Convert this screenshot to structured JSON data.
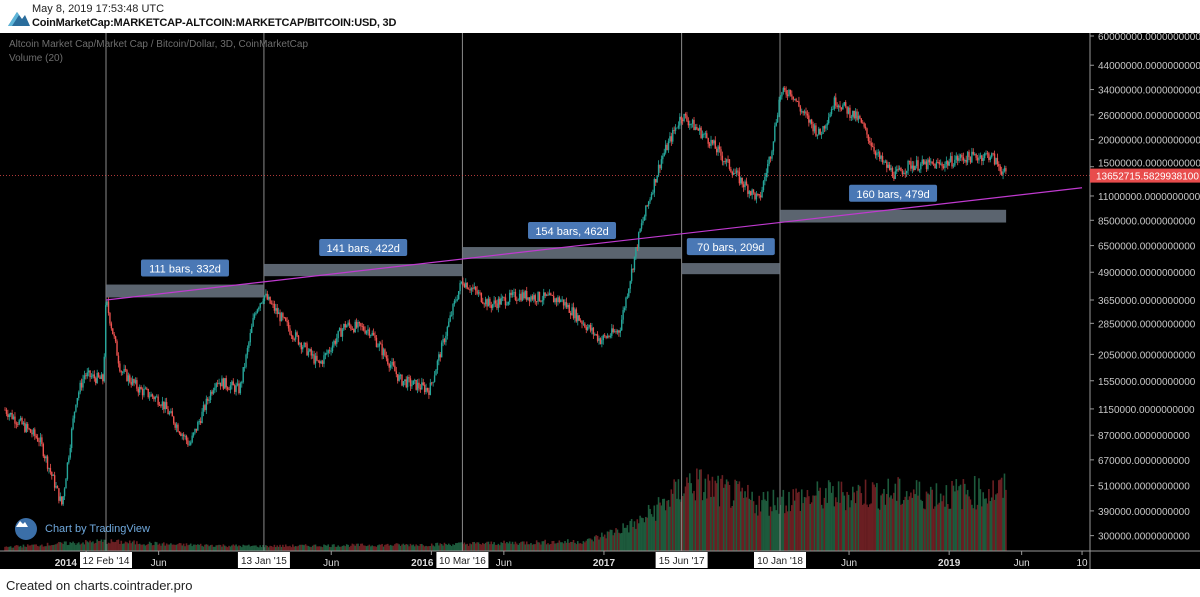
{
  "header": {
    "timestamp": "May 8, 2019 17:53:48 UTC",
    "symbol": "CoinMarketCap:MARKETCAP-ALTCOIN:MARKETCAP/BITCOIN:USD, 3D"
  },
  "legend": {
    "series_title": "Altcoin Market Cap/Market Cap / Bitcoin/Dollar, 3D, CoinMarketCap",
    "volume_label": "Volume (20)"
  },
  "branding": {
    "tradingview": "Chart by TradingView"
  },
  "footer": {
    "text": "Created on charts.cointrader.pro"
  },
  "colors": {
    "up": "#26a69a",
    "down": "#ef5350",
    "trendline": "#c03ad0",
    "box": "#6b7683",
    "label_bg": "#4a78b5",
    "price_label": "#e84c4c"
  },
  "chart_data": {
    "type": "candlestick",
    "title": "Altcoin Market Cap/Market Cap / Bitcoin/Dollar, 3D, CoinMarketCap",
    "y_scale": "log",
    "ylim": [
      260000,
      62000000
    ],
    "y_ticks": [
      "60000000.0000000000",
      "44000000.0000000000",
      "34000000.0000000000",
      "26000000.0000000000",
      "20000000.0000000000",
      "15000000.0000000000",
      "11000000.0000000000",
      "8500000.0000000000",
      "6500000.0000000000",
      "4900000.0000000000",
      "3650000.0000000000",
      "2850000.0000000000",
      "2050000.0000000000",
      "1550000.0000000000",
      "1150000.0000000000",
      "870000.0000000000",
      "670000.0000000000",
      "510000.0000000000",
      "390000.0000000000",
      "300000.0000000000"
    ],
    "y_tick_values": [
      60000000,
      44000000,
      34000000,
      26000000,
      20000000,
      15000000,
      11000000,
      8500000,
      6500000,
      4900000,
      3650000,
      2850000,
      2050000,
      1550000,
      1150000,
      870000,
      670000,
      510000,
      390000,
      300000
    ],
    "last_price_label": "13652715.5829938100",
    "last_price": 13652715.58,
    "x_ticks": [
      {
        "label": "2014",
        "t": 2014.0,
        "bold": true
      },
      {
        "label": "Jun",
        "t": 2014.42
      },
      {
        "label": "Jun",
        "t": 2015.42
      },
      {
        "label": "2016",
        "t": 2016.0,
        "bold": true
      },
      {
        "label": "Jun",
        "t": 2016.42
      },
      {
        "label": "2017",
        "t": 2017.0,
        "bold": true
      },
      {
        "label": "Jun",
        "t": 2018.42
      },
      {
        "label": "2019",
        "t": 2019.0,
        "bold": true
      },
      {
        "label": "Jun",
        "t": 2019.42
      },
      {
        "label": "10",
        "t": 2019.77
      }
    ],
    "markers": [
      {
        "label": "12 Feb '14",
        "t": 2014.115
      },
      {
        "label": "13 Jan '15",
        "t": 2015.03
      },
      {
        "label": "10 Mar '16",
        "t": 2016.18
      },
      {
        "label": "15 Jun '17",
        "t": 2017.45
      },
      {
        "label": "10 Jan '18",
        "t": 2018.02
      }
    ],
    "ranges": [
      {
        "label": "111 bars, 332d",
        "from": 2014.115,
        "to": 2015.03,
        "low": 3750000,
        "high": 4300000
      },
      {
        "label": "141 bars, 422d",
        "from": 2015.03,
        "to": 2016.18,
        "low": 4700000,
        "high": 5350000
      },
      {
        "label": "154 bars, 462d",
        "from": 2016.18,
        "to": 2017.45,
        "low": 5650000,
        "high": 6400000
      },
      {
        "label": "70 bars, 209d",
        "from": 2017.45,
        "to": 2018.02,
        "low": 4800000,
        "high": 5400000
      },
      {
        "label": "160 bars, 479d",
        "from": 2018.02,
        "to": 2019.33,
        "low": 8300000,
        "high": 9500000
      }
    ],
    "trendline": [
      {
        "t": 2014.115,
        "v": 3650000
      },
      {
        "t": 2019.77,
        "v": 12000000
      }
    ],
    "price_path": [
      [
        2013.53,
        1140000
      ],
      [
        2013.73,
        827000
      ],
      [
        2013.86,
        415000
      ],
      [
        2013.94,
        1260000
      ],
      [
        2013.99,
        1650000
      ],
      [
        2014.1,
        1560000
      ],
      [
        2014.115,
        3650000
      ],
      [
        2014.2,
        1740000
      ],
      [
        2014.31,
        1410000
      ],
      [
        2014.43,
        1260000
      ],
      [
        2014.6,
        785000
      ],
      [
        2014.75,
        1560000
      ],
      [
        2014.89,
        1410000
      ],
      [
        2014.98,
        3280000
      ],
      [
        2015.03,
        3850000
      ],
      [
        2015.18,
        2660000
      ],
      [
        2015.35,
        1830000
      ],
      [
        2015.5,
        2800000
      ],
      [
        2015.64,
        2660000
      ],
      [
        2015.82,
        1560000
      ],
      [
        2015.99,
        1410000
      ],
      [
        2016.14,
        3650000
      ],
      [
        2016.18,
        4510000
      ],
      [
        2016.34,
        3460000
      ],
      [
        2016.51,
        3850000
      ],
      [
        2016.75,
        3650000
      ],
      [
        2016.98,
        2390000
      ],
      [
        2017.09,
        2660000
      ],
      [
        2017.21,
        7670000
      ],
      [
        2017.33,
        16100000
      ],
      [
        2017.45,
        26000000
      ],
      [
        2017.61,
        19900000
      ],
      [
        2017.79,
        13000000
      ],
      [
        2017.9,
        10500000
      ],
      [
        2017.97,
        17900000
      ],
      [
        2018.02,
        32100000
      ],
      [
        2018.08,
        33800000
      ],
      [
        2018.14,
        27400000
      ],
      [
        2018.25,
        21000000
      ],
      [
        2018.34,
        30400000
      ],
      [
        2018.48,
        24600000
      ],
      [
        2018.6,
        16100000
      ],
      [
        2018.69,
        13700000
      ],
      [
        2018.77,
        15300000
      ],
      [
        2018.95,
        15300000
      ],
      [
        2019.06,
        16400000
      ],
      [
        2019.24,
        17000000
      ],
      [
        2019.33,
        13650000
      ]
    ],
    "volume_profile": [
      [
        2013.53,
        0.05
      ],
      [
        2014.1,
        0.12
      ],
      [
        2014.5,
        0.08
      ],
      [
        2015.0,
        0.06
      ],
      [
        2016.0,
        0.08
      ],
      [
        2016.9,
        0.12
      ],
      [
        2017.2,
        0.35
      ],
      [
        2017.5,
        0.85
      ],
      [
        2017.9,
        0.6
      ],
      [
        2018.1,
        0.65
      ],
      [
        2018.5,
        0.72
      ],
      [
        2019.0,
        0.7
      ],
      [
        2019.33,
        0.75
      ]
    ]
  }
}
